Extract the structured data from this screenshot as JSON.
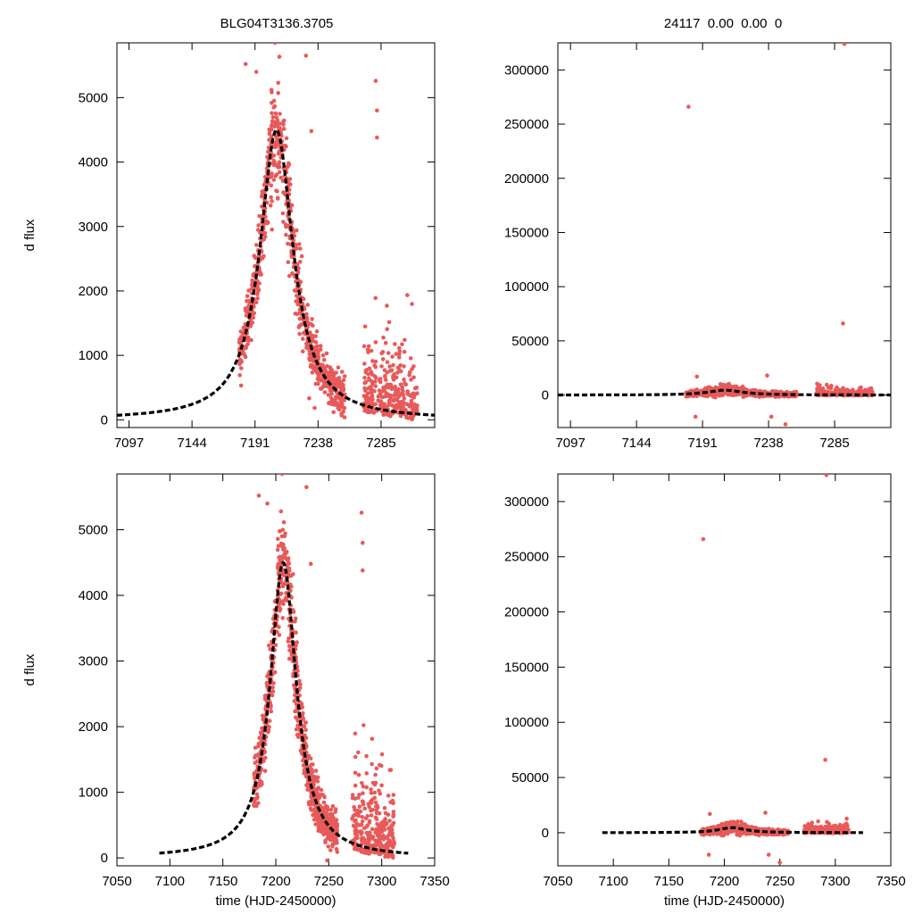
{
  "colors": {
    "points": "#e85a5a",
    "fit": "#000000",
    "frame": "#000000",
    "background": "#ffffff"
  },
  "figure": {
    "title_left": "BLG04T3136.3705",
    "title_right": "24117  0.00  0.00  0"
  },
  "chart_data": [
    {
      "type": "scatter",
      "panel": "top-left",
      "ylabel": "d flux",
      "xlabel": "",
      "xlim": [
        7088,
        7325
      ],
      "ylim": [
        -120,
        5850
      ],
      "xticks": [
        7097,
        7144,
        7191,
        7238,
        7285
      ],
      "yticks": [
        0,
        1000,
        2000,
        3000,
        4000,
        5000
      ],
      "series": [
        {
          "name": "photometry",
          "kind": "points",
          "generator": {
            "seasons": [
              [
                7179,
                7258
              ],
              [
                7272,
                7312
              ]
            ],
            "peak_t": 7207,
            "peak_flux": 4500,
            "tE": 15,
            "noise": 600,
            "outliers": [
              [
                7206,
                5850
              ],
              [
                7229,
                5650
              ],
              [
                7281,
                5260
              ],
              [
                7282,
                4800
              ],
              [
                7282,
                4380
              ],
              [
                7233,
                4480
              ],
              [
                7192,
                5400
              ],
              [
                7184,
                5520
              ]
            ]
          }
        },
        {
          "name": "model fit",
          "kind": "curve",
          "peak_t": 7207,
          "peak_flux": 4500,
          "tE": 15
        }
      ]
    },
    {
      "type": "scatter",
      "panel": "top-right",
      "ylabel": "",
      "xlabel": "",
      "xlim": [
        7088,
        7325
      ],
      "ylim": [
        -30000,
        325000
      ],
      "xticks": [
        7097,
        7144,
        7191,
        7238,
        7285
      ],
      "yticks": [
        0,
        50000,
        100000,
        150000,
        200000,
        250000,
        300000
      ],
      "series": [
        {
          "name": "photometry",
          "kind": "points",
          "generator": {
            "seasons": [
              [
                7179,
                7258
              ],
              [
                7272,
                7312
              ]
            ],
            "peak_t": 7207,
            "peak_flux": 4500,
            "tE": 15,
            "noise": 3500,
            "outliers": [
              [
                7181,
                266000
              ],
              [
                7292,
                324000
              ],
              [
                7291,
                66000
              ],
              [
                7250,
                -27000
              ],
              [
                7237,
                18000
              ],
              [
                7187,
                17000
              ],
              [
                7186,
                -20000
              ],
              [
                7240,
                -20000
              ]
            ]
          }
        },
        {
          "name": "model fit",
          "kind": "curve",
          "peak_t": 7207,
          "peak_flux": 4500,
          "tE": 15
        }
      ]
    },
    {
      "type": "scatter",
      "panel": "bottom-left",
      "ylabel": "d flux",
      "xlabel": "time (HJD-2450000)",
      "xlim": [
        7050,
        7350
      ],
      "ylim": [
        -120,
        5850
      ],
      "xticks": [
        7050,
        7100,
        7150,
        7200,
        7250,
        7300,
        7350
      ],
      "yticks": [
        0,
        1000,
        2000,
        3000,
        4000,
        5000
      ],
      "series": [
        {
          "name": "photometry",
          "kind": "points",
          "generator": {
            "seasons": [
              [
                7179,
                7258
              ],
              [
                7272,
                7312
              ]
            ],
            "peak_t": 7207,
            "peak_flux": 4500,
            "tE": 15,
            "noise": 600,
            "outliers": [
              [
                7206,
                5850
              ],
              [
                7229,
                5650
              ],
              [
                7281,
                5260
              ],
              [
                7282,
                4800
              ],
              [
                7282,
                4380
              ],
              [
                7233,
                4480
              ],
              [
                7192,
                5400
              ],
              [
                7184,
                5520
              ]
            ]
          }
        },
        {
          "name": "model fit",
          "kind": "curve",
          "peak_t": 7207,
          "peak_flux": 4500,
          "tE": 15,
          "range": [
            7090,
            7325
          ]
        }
      ]
    },
    {
      "type": "scatter",
      "panel": "bottom-right",
      "ylabel": "",
      "xlabel": "time (HJD-2450000)",
      "xlim": [
        7050,
        7350
      ],
      "ylim": [
        -30000,
        325000
      ],
      "xticks": [
        7050,
        7100,
        7150,
        7200,
        7250,
        7300,
        7350
      ],
      "yticks": [
        0,
        50000,
        100000,
        150000,
        200000,
        250000,
        300000
      ],
      "series": [
        {
          "name": "photometry",
          "kind": "points",
          "generator": {
            "seasons": [
              [
                7179,
                7258
              ],
              [
                7272,
                7312
              ]
            ],
            "peak_t": 7207,
            "peak_flux": 4500,
            "tE": 15,
            "noise": 3500,
            "outliers": [
              [
                7181,
                266000
              ],
              [
                7292,
                324000
              ],
              [
                7291,
                66000
              ],
              [
                7250,
                -27000
              ],
              [
                7237,
                18000
              ],
              [
                7187,
                17000
              ],
              [
                7186,
                -20000
              ],
              [
                7240,
                -20000
              ]
            ]
          }
        },
        {
          "name": "model fit",
          "kind": "curve",
          "peak_t": 7207,
          "peak_flux": 4500,
          "tE": 15,
          "range": [
            7090,
            7325
          ]
        }
      ]
    }
  ]
}
